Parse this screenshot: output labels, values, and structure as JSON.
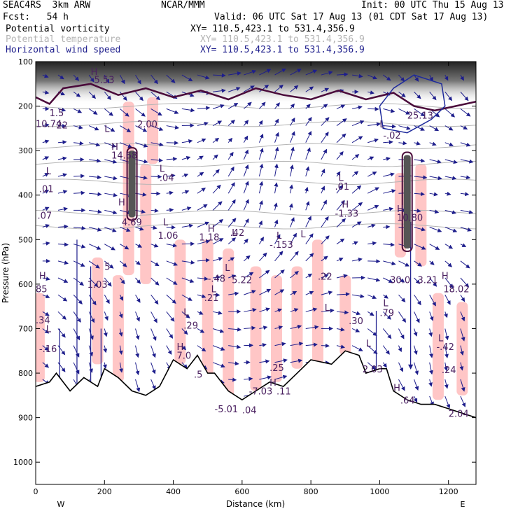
{
  "header": {
    "model": "SEAC4RS  3km ARW",
    "org": "NCAR/MMM",
    "init": "Init: 00 UTC Thu 15 Aug 13",
    "fcst": "Fcst:   54 h",
    "valid": "Valid: 06 UTC Sat 17 Aug 13 (01 CDT Sat 17 Aug 13)",
    "fields": [
      {
        "name": "Potential vorticity",
        "xy": "XY= 110.5,423.1 to 531.4,356.9",
        "color": "#000000"
      },
      {
        "name": "Potential temperature",
        "xy": "XY= 110.5,423.1 to 531.4,356.9",
        "color": "#b4b4b4"
      },
      {
        "name": "Horizontal wind speed",
        "xy": "XY= 110.5,423.1 to 531.4,356.9",
        "color": "#1e1e8c"
      }
    ]
  },
  "chart_data": {
    "type": "cross-section",
    "xlabel": "Distance (km)",
    "ylabel": "Pressure (hPa)",
    "xlim": [
      0,
      1280
    ],
    "ylim": [
      1050,
      100
    ],
    "x_ticks": [
      0,
      200,
      400,
      600,
      800,
      1000,
      1200
    ],
    "y_ticks": [
      100,
      200,
      300,
      400,
      500,
      600,
      700,
      800,
      900,
      1000
    ],
    "end_labels": {
      "left": "W",
      "right": "E"
    },
    "terrain_surface": [
      {
        "x": 0,
        "p": 830
      },
      {
        "x": 40,
        "p": 820
      },
      {
        "x": 60,
        "p": 800
      },
      {
        "x": 100,
        "p": 840
      },
      {
        "x": 140,
        "p": 810
      },
      {
        "x": 180,
        "p": 830
      },
      {
        "x": 200,
        "p": 790
      },
      {
        "x": 240,
        "p": 810
      },
      {
        "x": 280,
        "p": 840
      },
      {
        "x": 320,
        "p": 850
      },
      {
        "x": 360,
        "p": 830
      },
      {
        "x": 400,
        "p": 770
      },
      {
        "x": 440,
        "p": 790
      },
      {
        "x": 470,
        "p": 760
      },
      {
        "x": 500,
        "p": 800
      },
      {
        "x": 520,
        "p": 800
      },
      {
        "x": 560,
        "p": 840
      },
      {
        "x": 600,
        "p": 860
      },
      {
        "x": 640,
        "p": 840
      },
      {
        "x": 680,
        "p": 820
      },
      {
        "x": 720,
        "p": 830
      },
      {
        "x": 760,
        "p": 800
      },
      {
        "x": 800,
        "p": 770
      },
      {
        "x": 860,
        "p": 780
      },
      {
        "x": 900,
        "p": 750
      },
      {
        "x": 940,
        "p": 760
      },
      {
        "x": 960,
        "p": 800
      },
      {
        "x": 1000,
        "p": 790
      },
      {
        "x": 1020,
        "p": 790
      },
      {
        "x": 1040,
        "p": 840
      },
      {
        "x": 1080,
        "p": 860
      },
      {
        "x": 1120,
        "p": 870
      },
      {
        "x": 1160,
        "p": 870
      },
      {
        "x": 1200,
        "p": 880
      },
      {
        "x": 1240,
        "p": 890
      },
      {
        "x": 1280,
        "p": 900
      }
    ],
    "theta_contours_p": [
      200,
      240,
      290,
      330,
      370,
      440,
      470
    ],
    "tropopause_pv": [
      {
        "x": 0,
        "p": 180
      },
      {
        "x": 40,
        "p": 195
      },
      {
        "x": 80,
        "p": 160
      },
      {
        "x": 160,
        "p": 150
      },
      {
        "x": 240,
        "p": 175
      },
      {
        "x": 320,
        "p": 160
      },
      {
        "x": 400,
        "p": 180
      },
      {
        "x": 480,
        "p": 165
      },
      {
        "x": 560,
        "p": 185
      },
      {
        "x": 640,
        "p": 160
      },
      {
        "x": 720,
        "p": 175
      },
      {
        "x": 800,
        "p": 185
      },
      {
        "x": 880,
        "p": 165
      },
      {
        "x": 960,
        "p": 185
      },
      {
        "x": 1040,
        "p": 170
      },
      {
        "x": 1100,
        "p": 200
      },
      {
        "x": 1160,
        "p": 210
      },
      {
        "x": 1220,
        "p": 200
      },
      {
        "x": 1280,
        "p": 190
      }
    ],
    "wind_max_contour": [
      {
        "x": 1000,
        "p": 200
      },
      {
        "x": 1040,
        "p": 160
      },
      {
        "x": 1100,
        "p": 130
      },
      {
        "x": 1180,
        "p": 150
      },
      {
        "x": 1190,
        "p": 200
      },
      {
        "x": 1150,
        "p": 230
      },
      {
        "x": 1080,
        "p": 260
      },
      {
        "x": 1010,
        "p": 250
      },
      {
        "x": 1000,
        "p": 200
      }
    ],
    "pink_bands": [
      {
        "x": 270,
        "p1": 190,
        "p2": 580
      },
      {
        "x": 320,
        "p1": 330,
        "p2": 600
      },
      {
        "x": 340,
        "p1": 180,
        "p2": 330
      },
      {
        "x": 180,
        "p1": 540,
        "p2": 780
      },
      {
        "x": 240,
        "p1": 580,
        "p2": 820
      },
      {
        "x": 420,
        "p1": 500,
        "p2": 780
      },
      {
        "x": 500,
        "p1": 500,
        "p2": 820
      },
      {
        "x": 560,
        "p1": 520,
        "p2": 860
      },
      {
        "x": 640,
        "p1": 560,
        "p2": 840
      },
      {
        "x": 700,
        "p1": 580,
        "p2": 820
      },
      {
        "x": 760,
        "p1": 560,
        "p2": 790
      },
      {
        "x": 820,
        "p1": 500,
        "p2": 780
      },
      {
        "x": 900,
        "p1": 580,
        "p2": 760
      },
      {
        "x": 1060,
        "p1": 350,
        "p2": 540
      },
      {
        "x": 1120,
        "p1": 330,
        "p2": 560
      },
      {
        "x": 1170,
        "p1": 620,
        "p2": 860
      },
      {
        "x": 1240,
        "p1": 640,
        "p2": 850
      },
      {
        "x": 10,
        "p1": 620,
        "p2": 820
      }
    ],
    "dark_pv_columns": [
      {
        "x": 280,
        "p1": 300,
        "p2": 450
      },
      {
        "x": 1080,
        "p1": 310,
        "p2": 520
      }
    ],
    "labels": [
      {
        "x": 200,
        "p": 258,
        "t": "L"
      },
      {
        "x": 295,
        "p": 248,
        "t": "2.00"
      },
      {
        "x": 40,
        "p": 223,
        "t": "1.5"
      },
      {
        "x": 170,
        "p": 148,
        "t": "5.53"
      },
      {
        "x": 160,
        "p": 130,
        "t": "H"
      },
      {
        "x": 0,
        "p": 247,
        "t": "10.74"
      },
      {
        "x": 60,
        "p": 250,
        "t": "22"
      },
      {
        "x": 220,
        "p": 298,
        "t": "H"
      },
      {
        "x": 220,
        "p": 318,
        "t": "14.68"
      },
      {
        "x": 360,
        "p": 348,
        "t": "L"
      },
      {
        "x": 360,
        "p": 368,
        "t": ".04"
      },
      {
        "x": 30,
        "p": 353,
        "t": "L"
      },
      {
        "x": 10,
        "p": 393,
        "t": ".01"
      },
      {
        "x": 5,
        "p": 453,
        "t": ".07"
      },
      {
        "x": 240,
        "p": 423,
        "t": "H"
      },
      {
        "x": 250,
        "p": 468,
        "t": "4.69"
      },
      {
        "x": 370,
        "p": 468,
        "t": "L"
      },
      {
        "x": 355,
        "p": 498,
        "t": "1.06"
      },
      {
        "x": 500,
        "p": 482,
        "t": "H"
      },
      {
        "x": 475,
        "p": 502,
        "t": "1.18"
      },
      {
        "x": 570,
        "p": 492,
        "t": "L"
      },
      {
        "x": 565,
        "p": 492,
        "t": ".42"
      },
      {
        "x": 770,
        "p": 495,
        "t": "L"
      },
      {
        "x": 700,
        "p": 498,
        "t": "L"
      },
      {
        "x": 680,
        "p": 518,
        "t": "-.153"
      },
      {
        "x": 880,
        "p": 368,
        "t": "L"
      },
      {
        "x": 870,
        "p": 388,
        "t": ".01"
      },
      {
        "x": 890,
        "p": 428,
        "t": "H"
      },
      {
        "x": 870,
        "p": 448,
        "t": "-1.33"
      },
      {
        "x": 1050,
        "p": 438,
        "t": "H"
      },
      {
        "x": 1050,
        "p": 458,
        "t": "10.80"
      },
      {
        "x": 550,
        "p": 570,
        "t": "L"
      },
      {
        "x": 500,
        "p": 595,
        "t": "-.48"
      },
      {
        "x": 570,
        "p": 598,
        "t": "5.22"
      },
      {
        "x": 510,
        "p": 618,
        "t": "L"
      },
      {
        "x": 490,
        "p": 638,
        "t": ".21"
      },
      {
        "x": 820,
        "p": 590,
        "t": ".22"
      },
      {
        "x": 430,
        "p": 670,
        "t": "L"
      },
      {
        "x": 430,
        "p": 700,
        "t": ".29"
      },
      {
        "x": 840,
        "p": 660,
        "t": "L"
      },
      {
        "x": 910,
        "p": 690,
        "t": ".30"
      },
      {
        "x": 1010,
        "p": 650,
        "t": "L"
      },
      {
        "x": 1000,
        "p": 672,
        "t": ".79"
      },
      {
        "x": 1180,
        "p": 588,
        "t": "H"
      },
      {
        "x": 1185,
        "p": 618,
        "t": "18.02"
      },
      {
        "x": 1170,
        "p": 728,
        "t": "L"
      },
      {
        "x": 1165,
        "p": 748,
        "t": "-.42"
      },
      {
        "x": 1180,
        "p": 800,
        "t": ".24"
      },
      {
        "x": 680,
        "p": 828,
        "t": "H"
      },
      {
        "x": 620,
        "p": 848,
        "t": "-7.03"
      },
      {
        "x": 700,
        "p": 848,
        "t": ".11"
      },
      {
        "x": 520,
        "p": 888,
        "t": "-5.01"
      },
      {
        "x": 600,
        "p": 890,
        "t": ".04"
      },
      {
        "x": 10,
        "p": 588,
        "t": "H"
      },
      {
        "x": 0,
        "p": 618,
        "t": "85"
      },
      {
        "x": 0,
        "p": 688,
        "t": ".34"
      },
      {
        "x": 30,
        "p": 708,
        "t": "L"
      },
      {
        "x": 10,
        "p": 753,
        "t": "-.16"
      },
      {
        "x": 150,
        "p": 608,
        "t": "1.03"
      },
      {
        "x": 200,
        "p": 568,
        "t": "5"
      },
      {
        "x": 410,
        "p": 748,
        "t": "H"
      },
      {
        "x": 410,
        "p": 768,
        "t": "7.0"
      },
      {
        "x": 460,
        "p": 810,
        "t": ".5"
      },
      {
        "x": 680,
        "p": 795,
        "t": ".25"
      },
      {
        "x": 1040,
        "p": 840,
        "t": "H"
      },
      {
        "x": 1060,
        "p": 868,
        "t": ".64"
      },
      {
        "x": 1200,
        "p": 898,
        "t": "2.04"
      },
      {
        "x": 950,
        "p": 798,
        "t": "2.03"
      },
      {
        "x": 960,
        "p": 740,
        "t": "L"
      },
      {
        "x": 1080,
        "p": 228,
        "t": "25.13"
      },
      {
        "x": 1000,
        "p": 248,
        "t": "L"
      },
      {
        "x": 1010,
        "p": 273,
        "t": "-.02"
      },
      {
        "x": 1030,
        "p": 598,
        "t": "30.0"
      },
      {
        "x": 1110,
        "p": 598,
        "t": "3.21"
      }
    ],
    "grid": false
  }
}
